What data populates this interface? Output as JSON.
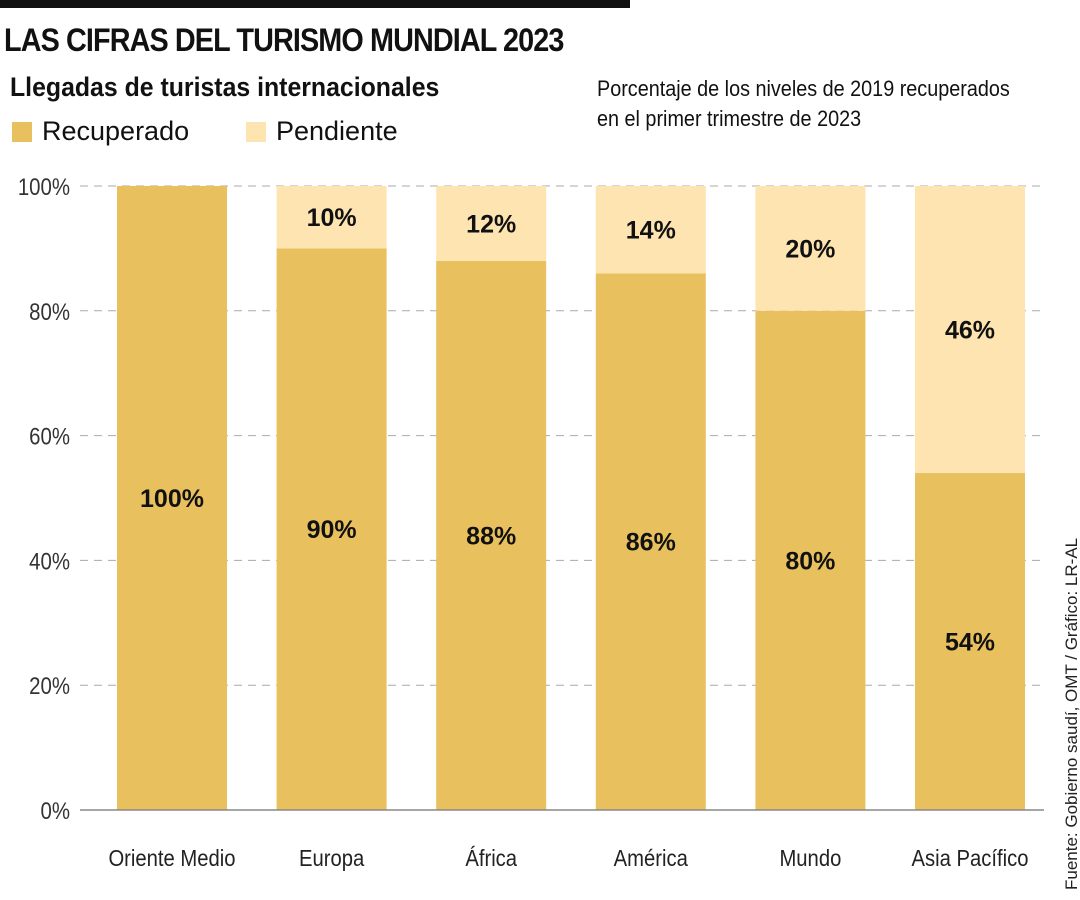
{
  "title": "LAS CIFRAS DEL TURISMO MUNDIAL 2023",
  "subtitle": "Llegadas de turistas internacionales",
  "note": [
    "Porcentaje de los niveles de 2019 recuperados",
    "en el primer trimestre de 2023"
  ],
  "source": "Fuente: Gobierno saudí, OMT / Gráfico: LR-AL",
  "colors": {
    "recuperado": "#e8c15e",
    "pendiente": "#fde4b0"
  },
  "chart_data": {
    "type": "bar",
    "stacked": true,
    "categories": [
      "Oriente Medio",
      "Europa",
      "África",
      "América",
      "Mundo",
      "Asia Pacífico"
    ],
    "series": [
      {
        "name": "Recuperado",
        "values": [
          100,
          90,
          88,
          86,
          80,
          54
        ],
        "labels": [
          "100%",
          "90%",
          "88%",
          "86%",
          "80%",
          "54%"
        ]
      },
      {
        "name": "Pendiente",
        "values": [
          0,
          10,
          12,
          14,
          20,
          46
        ],
        "labels": [
          "",
          "10%",
          "12%",
          "14%",
          "20%",
          "46%"
        ]
      }
    ],
    "yticks": [
      "0%",
      "20%",
      "40%",
      "60%",
      "80%",
      "100%"
    ],
    "ylim": [
      0,
      100
    ],
    "grid": true,
    "legend": "top-left"
  }
}
